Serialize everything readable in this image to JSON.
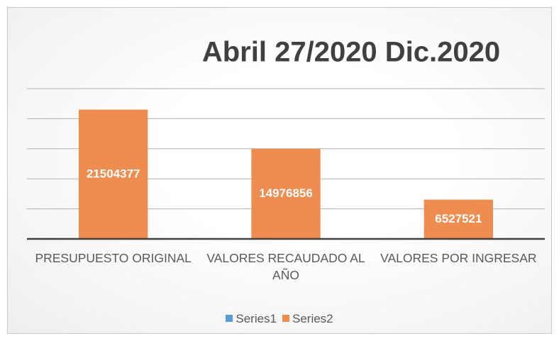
{
  "chart_data": {
    "type": "bar",
    "title": "Abril 27/2020 Dic.2020",
    "categories": [
      "PRESUPUESTO ORIGINAL",
      "VALORES RECAUDADO AL AÑO",
      "VALORES POR INGRESAR"
    ],
    "series": [
      {
        "name": "Series1",
        "color": "#5b9bd5",
        "values": [
          null,
          null,
          null
        ]
      },
      {
        "name": "Series2",
        "color": "#ef8c4f",
        "values": [
          21504377,
          14976856,
          6527521
        ]
      }
    ],
    "ylim": [
      0,
      25000000
    ],
    "yticks": [
      0,
      5000000,
      10000000,
      15000000,
      20000000,
      25000000
    ],
    "grid": true,
    "legend": "bottom"
  }
}
